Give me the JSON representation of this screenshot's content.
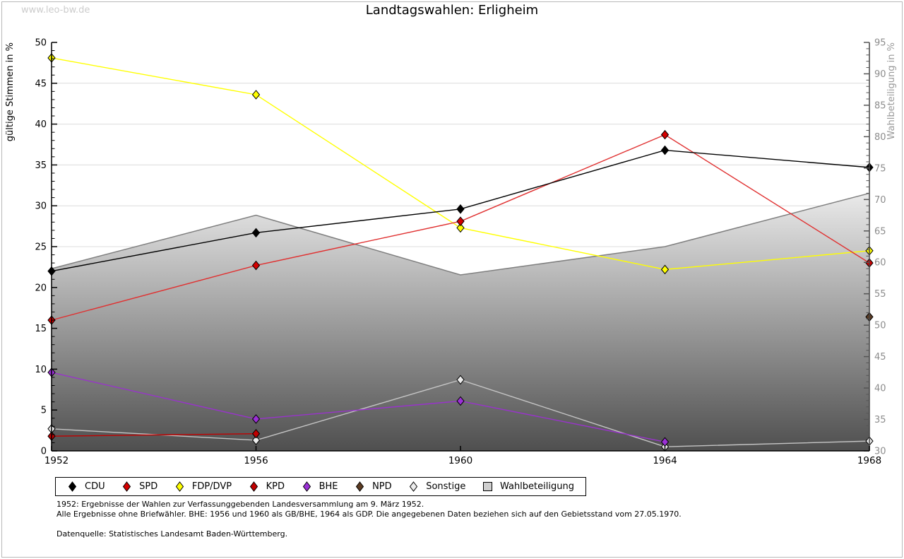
{
  "watermark": "www.leo-bw.de",
  "title": "Landtagswahlen: Erligheim",
  "chart_data": {
    "type": "line",
    "title": "Landtagswahlen: Erligheim",
    "x": [
      1952,
      1956,
      1960,
      1964,
      1968
    ],
    "x_tick_labels": [
      "1952",
      "1956",
      "1960",
      "1964",
      "1968"
    ],
    "grid": true,
    "legend_position": "bottom",
    "left_axis": {
      "label": "gültige Stimmen in %",
      "min": 0,
      "max": 50,
      "major_tick": 5,
      "minor_tick": 1
    },
    "right_axis": {
      "label": "Wahlbeteiligung in %",
      "min": 30,
      "max": 95,
      "major_tick": 5,
      "minor_tick": 1
    },
    "series": [
      {
        "name": "CDU",
        "type": "line",
        "axis": "left",
        "color": "#000000",
        "marker_fill": "#000000",
        "x": [
          1952,
          1956,
          1960,
          1964,
          1968
        ],
        "values": [
          22.0,
          26.7,
          29.6,
          36.8,
          34.7
        ]
      },
      {
        "name": "SPD",
        "type": "line",
        "axis": "left",
        "color": "#e03131",
        "marker_fill": "#d40000",
        "x": [
          1952,
          1956,
          1960,
          1964,
          1968
        ],
        "values": [
          16.0,
          22.7,
          28.1,
          38.7,
          23.0
        ]
      },
      {
        "name": "FDP/DVP",
        "type": "line",
        "axis": "left",
        "color": "#ffff00",
        "marker_fill": "#ffff00",
        "x": [
          1952,
          1956,
          1960,
          1964,
          1968
        ],
        "values": [
          48.1,
          43.6,
          27.3,
          22.2,
          24.5
        ]
      },
      {
        "name": "KPD",
        "type": "line",
        "axis": "left",
        "color": "#c00000",
        "marker_fill": "#c00000",
        "x": [
          1952,
          1956
        ],
        "values": [
          1.8,
          2.1
        ]
      },
      {
        "name": "BHE",
        "type": "line",
        "axis": "left",
        "color": "#9933cc",
        "marker_fill": "#9b30d6",
        "x": [
          1952,
          1956,
          1960,
          1964
        ],
        "values": [
          9.6,
          3.9,
          6.1,
          1.1
        ]
      },
      {
        "name": "NPD",
        "type": "line",
        "axis": "left",
        "color": "#5c3b22",
        "marker_fill": "#5c3b22",
        "x": [
          1968
        ],
        "values": [
          16.4
        ]
      },
      {
        "name": "Sonstige",
        "type": "line",
        "axis": "left",
        "color": "#c4c4c4",
        "marker_fill": "#ececec",
        "x": [
          1952,
          1956,
          1960,
          1964,
          1968
        ],
        "values": [
          2.7,
          1.3,
          8.7,
          0.5,
          1.2
        ]
      },
      {
        "name": "Wahlbeteiligung",
        "type": "area",
        "axis": "right",
        "color": "#7f7f7f",
        "fill_top": "#eaeaea",
        "fill_bottom": "#4f4f4f",
        "x": [
          1952,
          1956,
          1960,
          1964,
          1968
        ],
        "values": [
          59.0,
          67.5,
          58.0,
          62.5,
          71.0
        ]
      }
    ]
  },
  "footnotes": {
    "line1": "1952: Ergebnisse der Wahlen zur Verfassunggebenden Landesversammlung am 9. März 1952.",
    "line2": "Alle Ergebnisse ohne Briefwähler. BHE: 1956 und 1960 als GB/BHE, 1964 als GDP. Die angegebenen Daten beziehen sich auf den Gebietsstand vom 27.05.1970.",
    "source": "Datenquelle: Statistisches Landesamt Baden-Württemberg."
  }
}
